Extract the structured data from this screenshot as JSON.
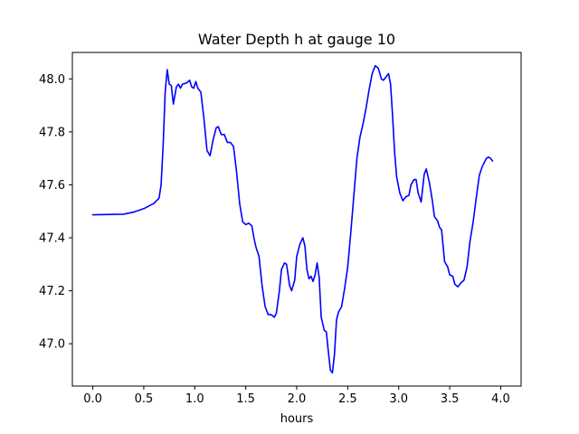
{
  "chart_data": {
    "type": "line",
    "title": "Water Depth h at gauge 10",
    "xlabel": "hours",
    "ylabel": "",
    "xlim": [
      -0.2,
      4.2
    ],
    "ylim": [
      46.84,
      48.1
    ],
    "xticks": [
      0.0,
      0.5,
      1.0,
      1.5,
      2.0,
      2.5,
      3.0,
      3.5,
      4.0
    ],
    "xtick_labels": [
      "0.0",
      "0.5",
      "1.0",
      "1.5",
      "2.0",
      "2.5",
      "3.0",
      "3.5",
      "4.0"
    ],
    "yticks": [
      47.0,
      47.2,
      47.4,
      47.6,
      47.8,
      48.0
    ],
    "ytick_labels": [
      "47.0",
      "47.2",
      "47.4",
      "47.6",
      "47.8",
      "48.0"
    ],
    "grid": false,
    "legend": "none",
    "series": [
      {
        "color": "#0000ff",
        "points": [
          [
            0.0,
            47.487
          ],
          [
            0.3,
            47.489
          ],
          [
            0.4,
            47.497
          ],
          [
            0.5,
            47.51
          ],
          [
            0.6,
            47.53
          ],
          [
            0.65,
            47.55
          ],
          [
            0.67,
            47.6
          ],
          [
            0.69,
            47.75
          ],
          [
            0.71,
            47.95
          ],
          [
            0.73,
            48.035
          ],
          [
            0.75,
            47.98
          ],
          [
            0.77,
            47.975
          ],
          [
            0.79,
            47.905
          ],
          [
            0.82,
            47.97
          ],
          [
            0.84,
            47.98
          ],
          [
            0.86,
            47.965
          ],
          [
            0.88,
            47.98
          ],
          [
            0.92,
            47.985
          ],
          [
            0.95,
            47.995
          ],
          [
            0.97,
            47.97
          ],
          [
            0.99,
            47.965
          ],
          [
            1.01,
            47.99
          ],
          [
            1.03,
            47.965
          ],
          [
            1.06,
            47.95
          ],
          [
            1.09,
            47.85
          ],
          [
            1.12,
            47.73
          ],
          [
            1.15,
            47.71
          ],
          [
            1.18,
            47.77
          ],
          [
            1.21,
            47.815
          ],
          [
            1.23,
            47.82
          ],
          [
            1.26,
            47.79
          ],
          [
            1.29,
            47.79
          ],
          [
            1.32,
            47.76
          ],
          [
            1.35,
            47.76
          ],
          [
            1.38,
            47.745
          ],
          [
            1.41,
            47.65
          ],
          [
            1.44,
            47.53
          ],
          [
            1.47,
            47.46
          ],
          [
            1.5,
            47.45
          ],
          [
            1.53,
            47.455
          ],
          [
            1.56,
            47.445
          ],
          [
            1.58,
            47.4
          ],
          [
            1.6,
            47.365
          ],
          [
            1.63,
            47.33
          ],
          [
            1.66,
            47.22
          ],
          [
            1.69,
            47.14
          ],
          [
            1.72,
            47.11
          ],
          [
            1.75,
            47.11
          ],
          [
            1.78,
            47.1
          ],
          [
            1.8,
            47.115
          ],
          [
            1.83,
            47.2
          ],
          [
            1.85,
            47.28
          ],
          [
            1.88,
            47.305
          ],
          [
            1.9,
            47.3
          ],
          [
            1.93,
            47.22
          ],
          [
            1.95,
            47.2
          ],
          [
            1.98,
            47.24
          ],
          [
            2.0,
            47.33
          ],
          [
            2.03,
            47.375
          ],
          [
            2.06,
            47.4
          ],
          [
            2.08,
            47.37
          ],
          [
            2.1,
            47.28
          ],
          [
            2.12,
            47.245
          ],
          [
            2.14,
            47.255
          ],
          [
            2.16,
            47.235
          ],
          [
            2.18,
            47.26
          ],
          [
            2.2,
            47.305
          ],
          [
            2.22,
            47.25
          ],
          [
            2.24,
            47.1
          ],
          [
            2.27,
            47.05
          ],
          [
            2.29,
            47.045
          ],
          [
            2.31,
            46.97
          ],
          [
            2.33,
            46.9
          ],
          [
            2.35,
            46.89
          ],
          [
            2.37,
            46.96
          ],
          [
            2.39,
            47.09
          ],
          [
            2.41,
            47.12
          ],
          [
            2.44,
            47.14
          ],
          [
            2.47,
            47.21
          ],
          [
            2.5,
            47.29
          ],
          [
            2.53,
            47.42
          ],
          [
            2.56,
            47.56
          ],
          [
            2.59,
            47.7
          ],
          [
            2.62,
            47.78
          ],
          [
            2.65,
            47.83
          ],
          [
            2.68,
            47.89
          ],
          [
            2.71,
            47.96
          ],
          [
            2.74,
            48.02
          ],
          [
            2.77,
            48.05
          ],
          [
            2.8,
            48.04
          ],
          [
            2.83,
            48.0
          ],
          [
            2.85,
            47.995
          ],
          [
            2.88,
            48.01
          ],
          [
            2.9,
            48.02
          ],
          [
            2.92,
            47.98
          ],
          [
            2.94,
            47.86
          ],
          [
            2.96,
            47.72
          ],
          [
            2.98,
            47.63
          ],
          [
            3.01,
            47.57
          ],
          [
            3.04,
            47.54
          ],
          [
            3.07,
            47.555
          ],
          [
            3.1,
            47.56
          ],
          [
            3.12,
            47.6
          ],
          [
            3.15,
            47.62
          ],
          [
            3.17,
            47.62
          ],
          [
            3.19,
            47.57
          ],
          [
            3.22,
            47.535
          ],
          [
            3.25,
            47.64
          ],
          [
            3.27,
            47.66
          ],
          [
            3.3,
            47.61
          ],
          [
            3.33,
            47.54
          ],
          [
            3.35,
            47.48
          ],
          [
            3.38,
            47.465
          ],
          [
            3.4,
            47.44
          ],
          [
            3.42,
            47.43
          ],
          [
            3.45,
            47.31
          ],
          [
            3.48,
            47.29
          ],
          [
            3.5,
            47.26
          ],
          [
            3.53,
            47.255
          ],
          [
            3.55,
            47.225
          ],
          [
            3.58,
            47.215
          ],
          [
            3.61,
            47.23
          ],
          [
            3.64,
            47.24
          ],
          [
            3.67,
            47.29
          ],
          [
            3.7,
            47.39
          ],
          [
            3.73,
            47.46
          ],
          [
            3.76,
            47.55
          ],
          [
            3.79,
            47.635
          ],
          [
            3.82,
            47.67
          ],
          [
            3.86,
            47.7
          ],
          [
            3.88,
            47.705
          ],
          [
            3.9,
            47.7
          ],
          [
            3.92,
            47.69
          ]
        ]
      }
    ]
  }
}
